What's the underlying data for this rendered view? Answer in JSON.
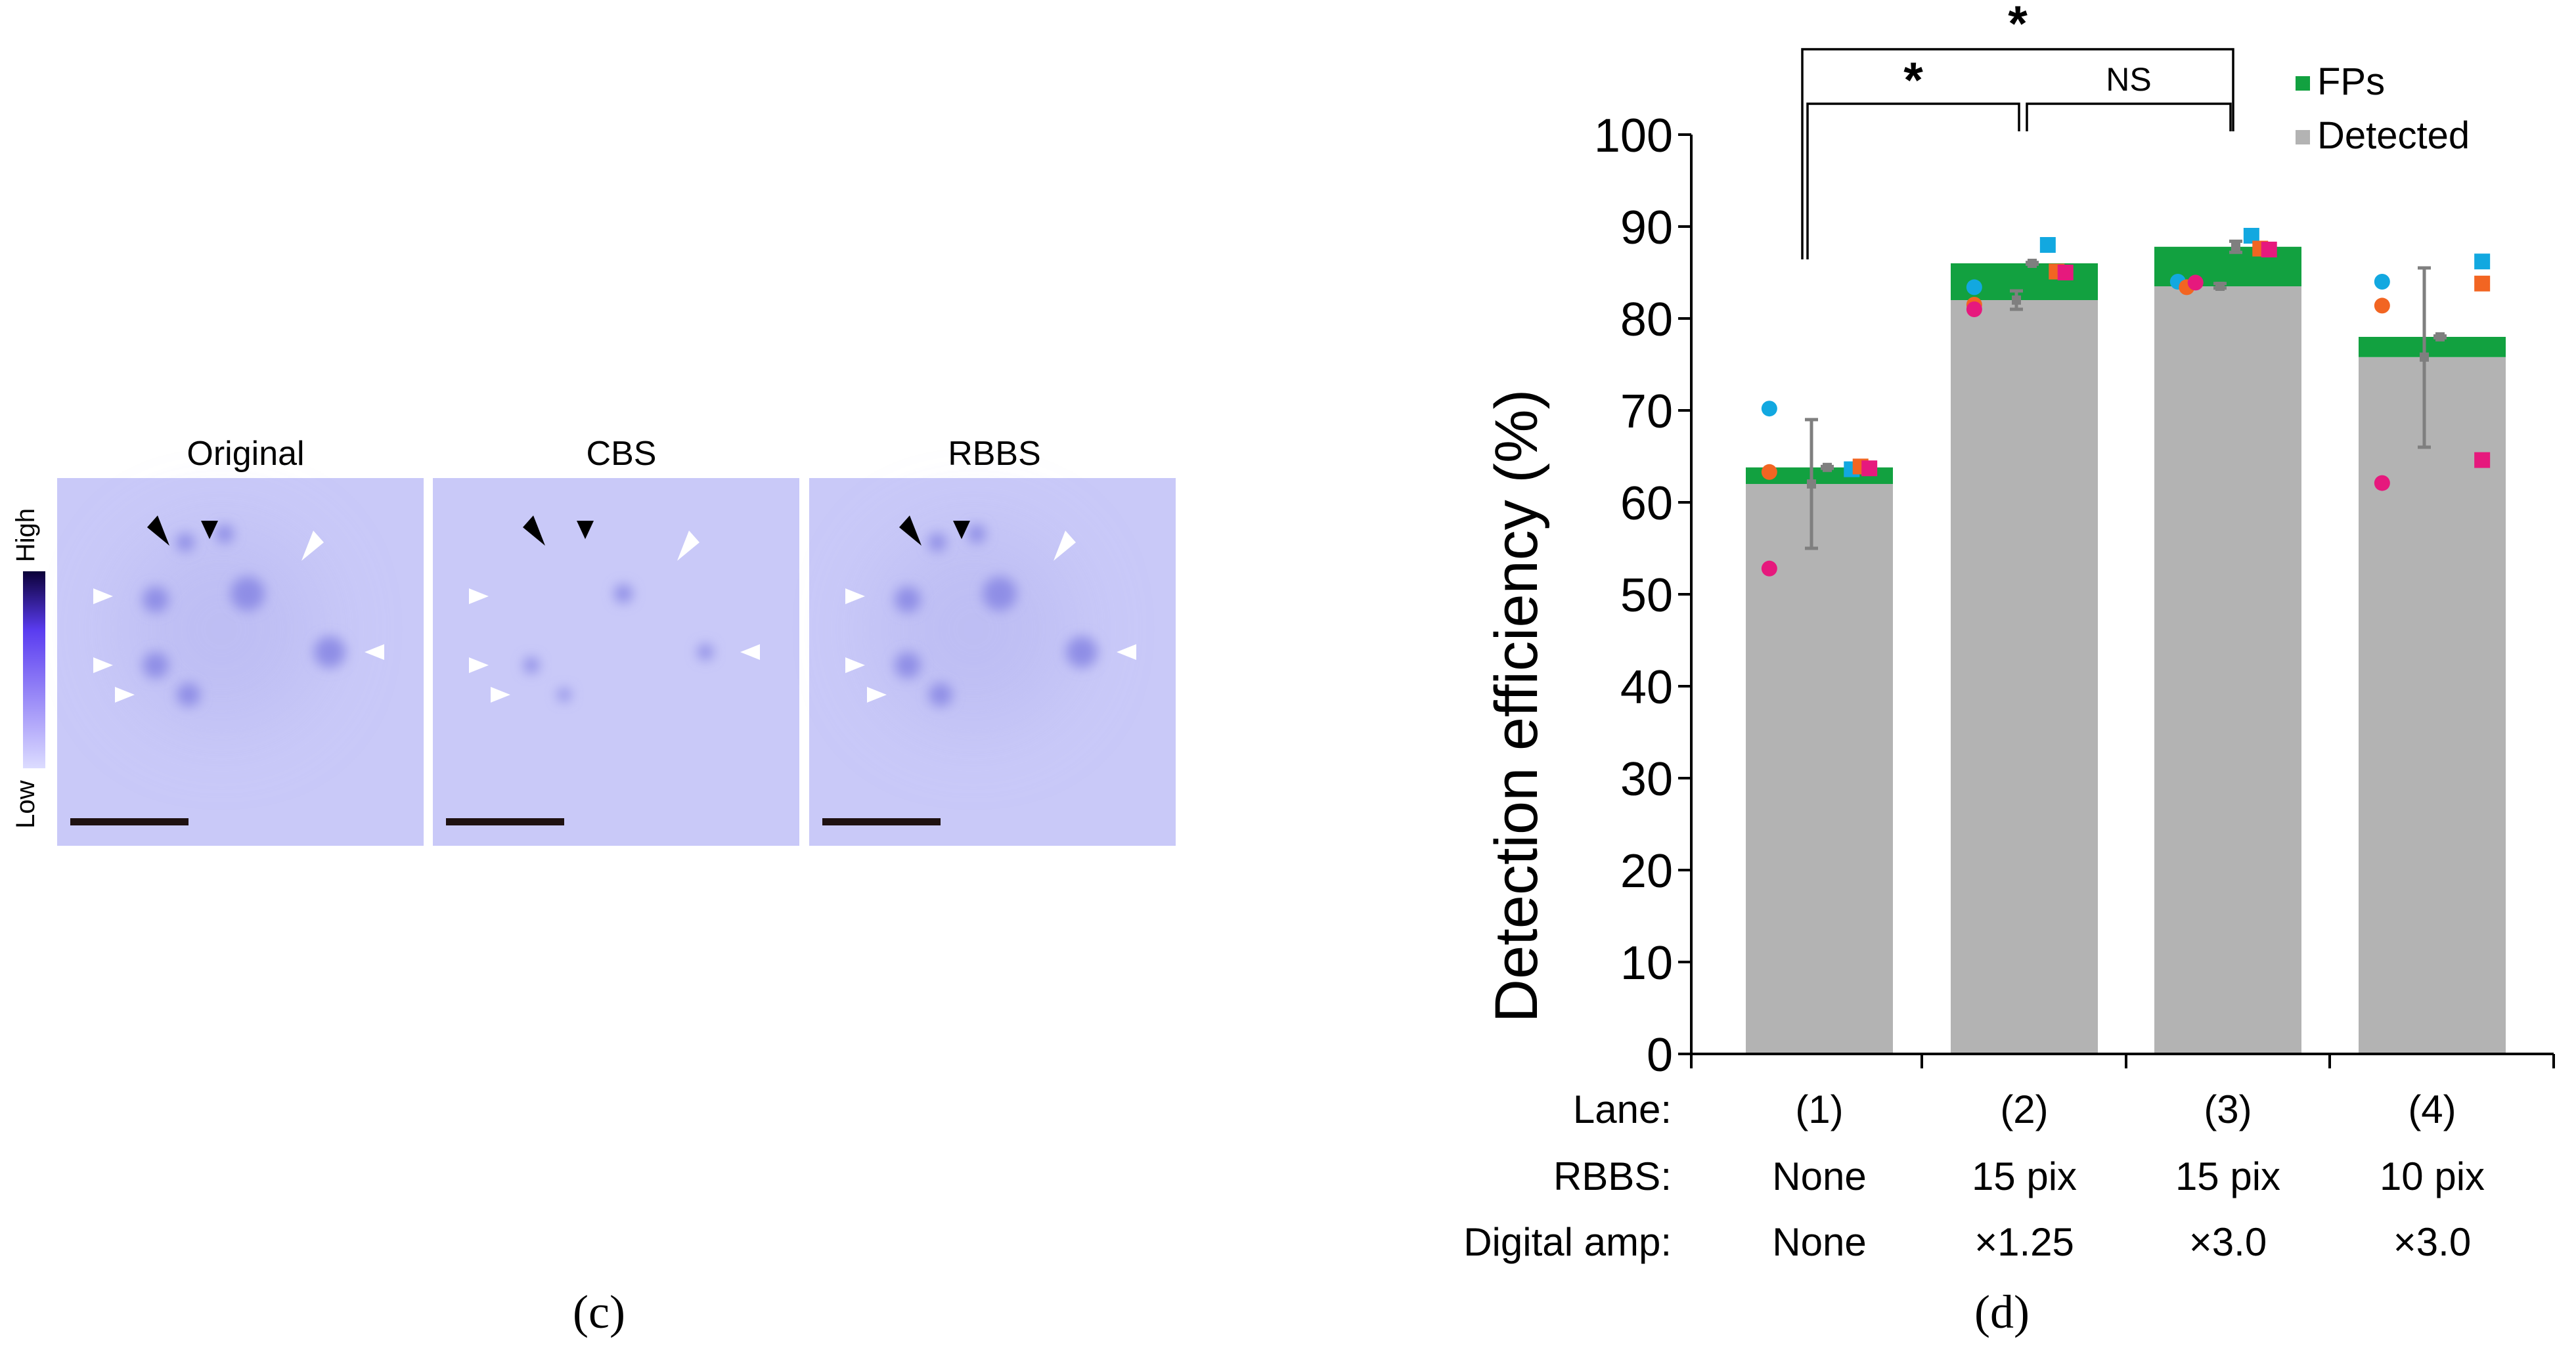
{
  "panel_c": {
    "panel_label": "(c)",
    "images": [
      {
        "title": "Original"
      },
      {
        "title": "CBS"
      },
      {
        "title": "RBBS"
      }
    ],
    "colorbar": {
      "high_label": "High",
      "low_label": "Low",
      "high_color": "#0b0038",
      "mid_color": "#5a3cf0",
      "low_color": "#dcdcff"
    },
    "image_background": "#c9c9f8",
    "spot_color": "#8f8ee6"
  },
  "panel_d": {
    "panel_label": "(d)",
    "legend": [
      {
        "label": "FPs",
        "color": "#12a140"
      },
      {
        "label": "Detected",
        "color": "#b3b3b3"
      }
    ],
    "significance": [
      {
        "label": "*",
        "from_lane": 1,
        "to_lane": 2
      },
      {
        "label": "NS",
        "from_lane": 2,
        "to_lane": 3
      },
      {
        "label": "*",
        "from_lane": 1,
        "to_lane": 3
      }
    ],
    "row_labels": {
      "lane": "Lane:",
      "rbbs": "RBBS:",
      "digital_amp": "Digital amp:"
    },
    "lanes": [
      {
        "lane": "(1)",
        "rbbs": "None",
        "digital_amp": "None"
      },
      {
        "lane": "(2)",
        "rbbs": "15 pix",
        "digital_amp": "×1.25"
      },
      {
        "lane": "(3)",
        "rbbs": "15 pix",
        "digital_amp": "×3.0"
      },
      {
        "lane": "(4)",
        "rbbs": "10 pix",
        "digital_amp": "×3.0"
      }
    ]
  },
  "chart_data": {
    "type": "bar",
    "title": "",
    "ylabel": "Detection efficiency (%)",
    "xlabel": "",
    "ylim": [
      0,
      100
    ],
    "yticks": [
      "0",
      "10",
      "20",
      "30",
      "40",
      "50",
      "60",
      "70",
      "80",
      "90",
      "100"
    ],
    "categories": [
      "(1)",
      "(2)",
      "(3)",
      "(4)"
    ],
    "series": [
      {
        "name": "Detected",
        "color": "#b3b3b3",
        "values": [
          62,
          82,
          83.5,
          75.8
        ]
      },
      {
        "name": "FPs",
        "color": "#12a140",
        "values": [
          1.8,
          4,
          4.3,
          2.2
        ]
      }
    ],
    "detected_error": [
      {
        "mean": 62,
        "low": 55,
        "high": 69
      },
      {
        "mean": 82,
        "low": 81,
        "high": 83
      },
      {
        "mean": 83.5,
        "low": 83.3,
        "high": 83.8
      },
      {
        "mean": 75.8,
        "low": 66,
        "high": 85.5
      }
    ],
    "total_error": [
      {
        "mean": 63.8,
        "low": 63.7,
        "high": 63.9
      },
      {
        "mean": 86,
        "low": 85.9,
        "high": 86.1
      },
      {
        "mean": 87.8,
        "low": 87.2,
        "high": 88.4
      },
      {
        "mean": 78,
        "low": 77.9,
        "high": 78.1
      }
    ],
    "points_detected": [
      {
        "lane": 1,
        "offset": -0.34,
        "y": 70.2,
        "color": "#12a8e0"
      },
      {
        "lane": 1,
        "offset": -0.34,
        "y": 63.3,
        "color": "#f26522"
      },
      {
        "lane": 1,
        "offset": -0.34,
        "y": 52.8,
        "color": "#e6197d"
      },
      {
        "lane": 2,
        "offset": -0.34,
        "y": 83.4,
        "color": "#12a8e0"
      },
      {
        "lane": 2,
        "offset": -0.34,
        "y": 81.5,
        "color": "#f26522"
      },
      {
        "lane": 2,
        "offset": -0.34,
        "y": 81.0,
        "color": "#e6197d"
      },
      {
        "lane": 3,
        "offset": -0.34,
        "y": 84.0,
        "color": "#12a8e0"
      },
      {
        "lane": 3,
        "offset": -0.28,
        "y": 83.4,
        "color": "#f26522"
      },
      {
        "lane": 3,
        "offset": -0.22,
        "y": 83.9,
        "color": "#e6197d"
      },
      {
        "lane": 4,
        "offset": -0.34,
        "y": 84.0,
        "color": "#12a8e0"
      },
      {
        "lane": 4,
        "offset": -0.34,
        "y": 81.4,
        "color": "#f26522"
      },
      {
        "lane": 4,
        "offset": -0.34,
        "y": 62.1,
        "color": "#e6197d"
      }
    ],
    "points_total": [
      {
        "lane": 1,
        "offset": 0.22,
        "y": 63.6,
        "color": "#12a8e0"
      },
      {
        "lane": 1,
        "offset": 0.28,
        "y": 63.9,
        "color": "#f26522"
      },
      {
        "lane": 1,
        "offset": 0.34,
        "y": 63.7,
        "color": "#e6197d"
      },
      {
        "lane": 2,
        "offset": 0.16,
        "y": 88.0,
        "color": "#12a8e0"
      },
      {
        "lane": 2,
        "offset": 0.22,
        "y": 85.1,
        "color": "#f26522"
      },
      {
        "lane": 2,
        "offset": 0.28,
        "y": 85.0,
        "color": "#e6197d"
      },
      {
        "lane": 3,
        "offset": 0.16,
        "y": 89.0,
        "color": "#12a8e0"
      },
      {
        "lane": 3,
        "offset": 0.22,
        "y": 87.6,
        "color": "#f26522"
      },
      {
        "lane": 3,
        "offset": 0.28,
        "y": 87.5,
        "color": "#e6197d"
      },
      {
        "lane": 4,
        "offset": 0.34,
        "y": 86.2,
        "color": "#12a8e0"
      },
      {
        "lane": 4,
        "offset": 0.34,
        "y": 83.8,
        "color": "#f26522"
      },
      {
        "lane": 4,
        "offset": 0.34,
        "y": 64.6,
        "color": "#e6197d"
      }
    ]
  }
}
